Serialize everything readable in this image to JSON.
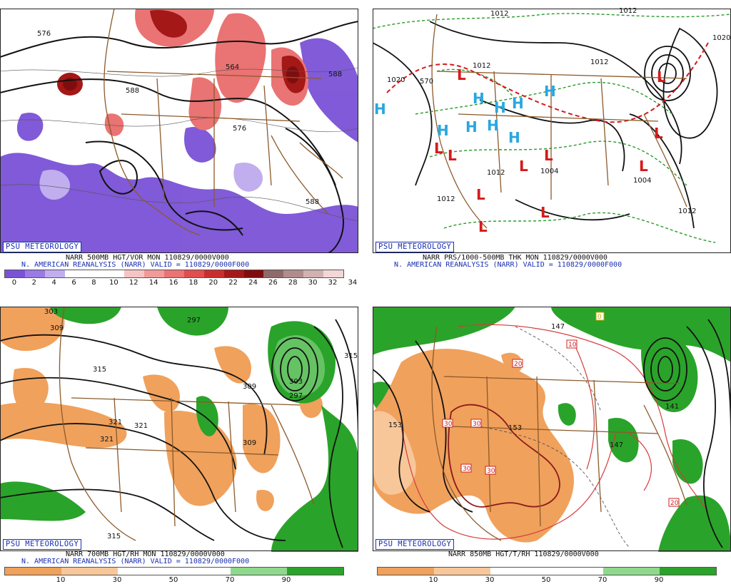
{
  "panels": [
    {
      "id": "p1",
      "badge": "PSU METEOROLOGY",
      "caption1": "NARR 500MB HGT/VOR MON  110829/0000V000",
      "caption2": "N. AMERICAN REANALYSIS (NARR) VALID = 110829/0000F000",
      "contour_labels": [
        "576",
        "564",
        "588",
        "588",
        "576",
        "588"
      ],
      "colorbar": {
        "colors": [
          "#7a52d6",
          "#9a7ae3",
          "#c0aeef",
          "#ffffff",
          "#ffffff",
          "#ffffff",
          "#f7c4c4",
          "#f29a9a",
          "#ea7373",
          "#e04e4e",
          "#c92e2e",
          "#a51818",
          "#800d0d",
          "#8f6a6a",
          "#b08c8c",
          "#d2b1b1",
          "#f3d6d6"
        ],
        "ticks": [
          "0",
          "2",
          "4",
          "6",
          "8",
          "10",
          "12",
          "14",
          "16",
          "18",
          "20",
          "22",
          "24",
          "26",
          "28",
          "30",
          "32",
          "34"
        ]
      }
    },
    {
      "id": "p2",
      "badge": "PSU METEOROLOGY",
      "caption1": "NARR PRS/1000-500MB THK MON  110829/0000V000",
      "caption2": "N. AMERICAN REANALYSIS (NARR) VALID = 110829/0000F000",
      "contour_labels": [
        "1012",
        "1012",
        "1020",
        "1012",
        "1012",
        "1004",
        "1004",
        "1012",
        "1012",
        "1012",
        "1020",
        "570"
      ],
      "symbols": {
        "high": "H",
        "low": "L"
      }
    },
    {
      "id": "p3",
      "badge": "PSU METEOROLOGY",
      "caption1": "NARR 700MB HGT/RH MON  110829/0000V000",
      "caption2": "N. AMERICAN REANALYSIS (NARR) VALID = 110829/0000F000",
      "contour_labels": [
        "303",
        "309",
        "297",
        "315",
        "321",
        "321",
        "321",
        "309",
        "303",
        "297",
        "315",
        "309",
        "315"
      ],
      "colorbar": {
        "colors": [
          "#f0a15c",
          "#f7c79a",
          "#ffffff",
          "#ffffff",
          "#8ed98c",
          "#2aa32a"
        ],
        "ticks": [
          "10",
          "30",
          "50",
          "70",
          "90"
        ]
      }
    },
    {
      "id": "p4",
      "badge": "PSU METEOROLOGY",
      "caption1": "NARR 850MB HGT/T/RH  110829/0000V000",
      "caption2": "",
      "contour_labels": [
        "153",
        "147",
        "153",
        "141",
        "147"
      ],
      "boxed_labels": [
        "10",
        "20",
        "20",
        "30",
        "30",
        "30",
        "30",
        "0",
        "20"
      ],
      "colorbar": {
        "colors": [
          "#f0a15c",
          "#f7c79a",
          "#ffffff",
          "#ffffff",
          "#8ed98c",
          "#2aa32a"
        ],
        "ticks": [
          "10",
          "30",
          "50",
          "70",
          "90"
        ]
      }
    }
  ]
}
